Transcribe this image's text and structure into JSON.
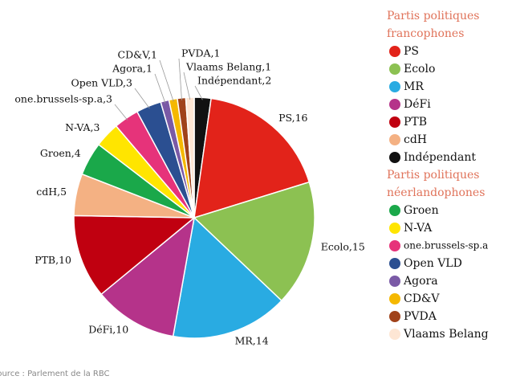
{
  "chart_data": {
    "type": "pie",
    "categories": [
      "Indépendant",
      "PS",
      "Ecolo",
      "MR",
      "DéFi",
      "PTB",
      "cdH",
      "Groen",
      "N-VA",
      "one.brussels-sp.a",
      "Open VLD",
      "Agora",
      "CD&V",
      "PVDA",
      "Vlaams Belang"
    ],
    "values": [
      2,
      16,
      15,
      14,
      10,
      10,
      5,
      4,
      3,
      3,
      3,
      1,
      1,
      1,
      1
    ],
    "value_labels": [
      "Indépendant,2",
      "PS,16",
      "Ecolo,15",
      "MR,14",
      "DéFi,10",
      "PTB,10",
      "cdH,5",
      "Groen,4",
      "N-VA,3",
      "one.brussels-sp.a,3",
      "Open VLD,3",
      "Agora,1",
      "CD&V,1",
      "PVDA,1",
      "Vlaams Belang,1"
    ],
    "colors": [
      "#111111",
      "#e2231a",
      "#8cc152",
      "#29abe2",
      "#b5338a",
      "#c00010",
      "#f4b183",
      "#1aa84a",
      "#ffe500",
      "#e6337a",
      "#2b4f91",
      "#7a5aa6",
      "#f5b800",
      "#a0421a",
      "#fde6d4"
    ],
    "legend": [
      {
        "title": [
          "Partis politiques",
          "francophones"
        ],
        "entries": [
          "PS",
          "Ecolo",
          "MR",
          "DéFi",
          "PTB",
          "cdH",
          "Indépendant"
        ]
      },
      {
        "title": [
          "Partis politiques",
          "néerlandophones"
        ],
        "entries": [
          "Groen",
          "N-VA",
          "one.brussels-sp.a",
          "Open VLD",
          "Agora",
          "CD&V",
          "PVDA",
          "Vlaams Belang"
        ]
      }
    ],
    "source": "Source : Parlement de la RBC"
  }
}
